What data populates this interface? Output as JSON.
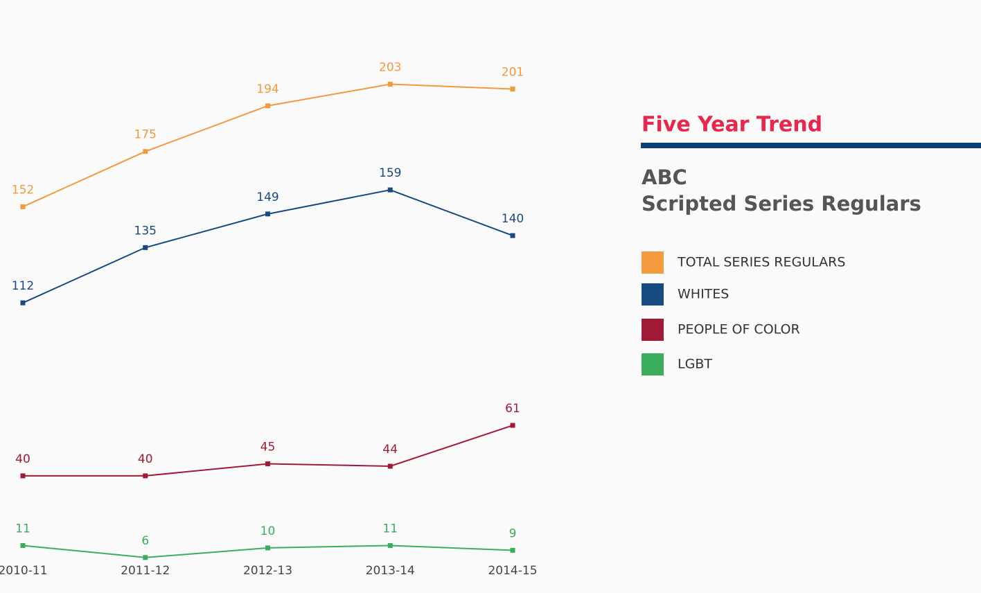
{
  "chart_data": {
    "type": "line",
    "title": "Five Year Trend",
    "subtitle": [
      "ABC",
      "Scripted Series Regulars"
    ],
    "categories": [
      "2010-11",
      "2011-12",
      "2012-13",
      "2013-14",
      "2014-15"
    ],
    "series": [
      {
        "name": "TOTAL SERIES REGULARS",
        "color": "#f39a3c",
        "values": [
          152,
          175,
          194,
          203,
          201
        ]
      },
      {
        "name": "WHITES",
        "color": "#174a80",
        "values": [
          112,
          135,
          149,
          159,
          140
        ]
      },
      {
        "name": "PEOPLE OF COLOR",
        "color": "#a01a35",
        "values": [
          40,
          40,
          45,
          44,
          61
        ]
      },
      {
        "name": "LGBT",
        "color": "#3aae5c",
        "values": [
          11,
          6,
          10,
          11,
          9
        ]
      }
    ],
    "ylim": [
      0,
      220
    ],
    "grid": false
  }
}
